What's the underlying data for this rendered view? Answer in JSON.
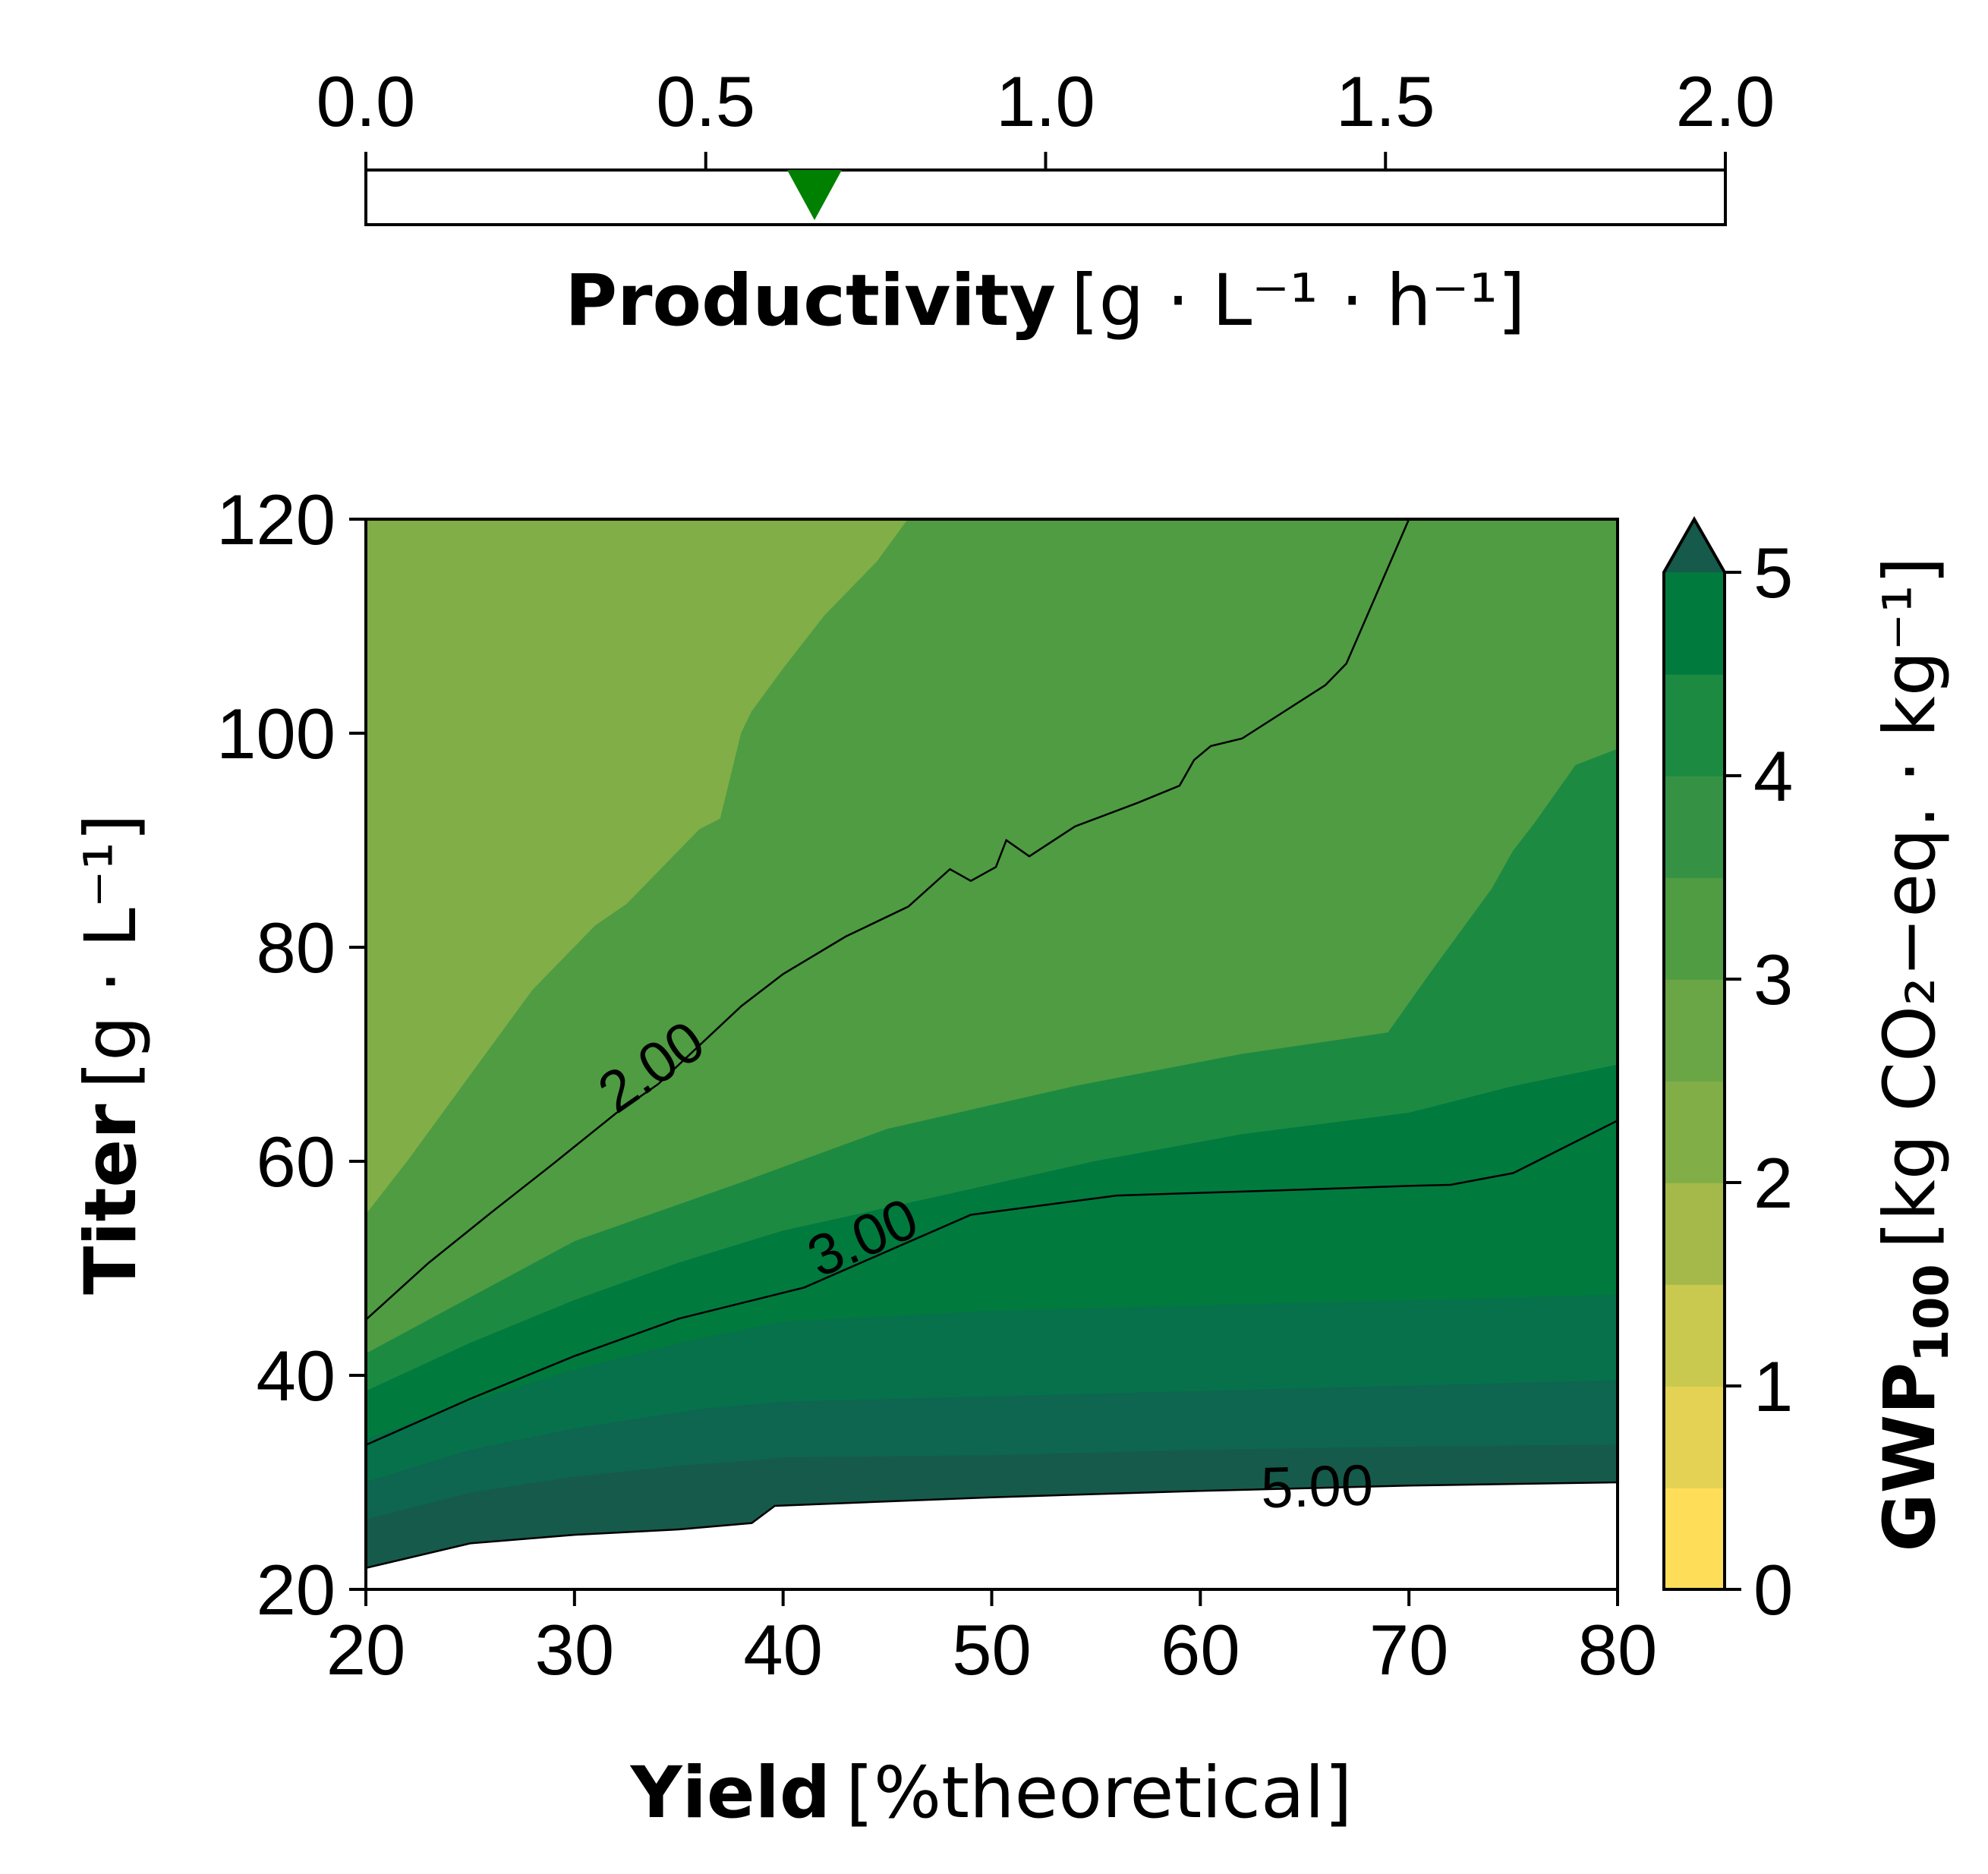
{
  "chart_data": [
    {
      "type": "slider",
      "name": "productivity-bar",
      "xlim": [
        0.0,
        2.0
      ],
      "ticks": [
        0.0,
        0.5,
        1.0,
        1.5,
        2.0
      ],
      "tick_labels": [
        "0.0",
        "0.5",
        "1.0",
        "1.5",
        "2.0"
      ],
      "marker_value": 0.66,
      "marker_color": "#008000",
      "xlabel_bold": "Productivity",
      "xlabel_unit": "[g · L⁻¹ · h⁻¹]"
    },
    {
      "type": "contour",
      "xlim": [
        20,
        80
      ],
      "ylim": [
        20,
        120
      ],
      "xticks": [
        20,
        30,
        40,
        50,
        60,
        70,
        80
      ],
      "yticks": [
        20,
        40,
        60,
        80,
        100,
        120
      ],
      "xlabel_bold": "Yield",
      "xlabel_unit": "[%theoretical]",
      "ylabel_bold": "Titer",
      "ylabel_unit": "[g · L⁻¹]",
      "contour_lines": [
        {
          "level": 2.0,
          "label": "2.00",
          "label_pos": [
            33.8,
            68.5
          ],
          "points": [
            [
              20,
              45.2
            ],
            [
              23,
              50.5
            ],
            [
              26,
              55.2
            ],
            [
              29,
              59.8
            ],
            [
              32,
              64.5
            ],
            [
              34,
              67.2
            ],
            [
              38,
              74.5
            ],
            [
              40,
              77.5
            ],
            [
              43,
              81
            ],
            [
              46,
              83.8
            ],
            [
              48,
              87.3
            ],
            [
              49,
              86.2
            ],
            [
              50.2,
              87.5
            ],
            [
              50.7,
              90
            ],
            [
              51.8,
              88.5
            ],
            [
              54,
              91.3
            ],
            [
              57,
              93.5
            ],
            [
              59,
              95.1
            ],
            [
              59.7,
              97.5
            ],
            [
              60.5,
              98.8
            ],
            [
              62,
              99.5
            ],
            [
              66,
              104.5
            ],
            [
              67,
              106.5
            ],
            [
              70,
              120
            ]
          ]
        },
        {
          "level": 3.0,
          "label": "3.00",
          "label_pos": [
            43.9,
            52.5
          ],
          "points": [
            [
              20,
              33.5
            ],
            [
              25,
              37.8
            ],
            [
              30,
              41.8
            ],
            [
              35,
              45.3
            ],
            [
              41,
              48.2
            ],
            [
              49,
              55
            ],
            [
              56,
              56.8
            ],
            [
              64,
              57.3
            ],
            [
              70,
              57.7
            ],
            [
              72,
              57.8
            ],
            [
              75,
              58.9
            ],
            [
              80,
              63.8
            ]
          ]
        },
        {
          "level": 5.0,
          "label": "5.00",
          "label_pos": [
            65.6,
            29.2
          ],
          "points": [
            [
              20,
              22
            ],
            [
              25,
              24.3
            ],
            [
              30,
              25.1
            ],
            [
              35,
              25.6
            ],
            [
              38.5,
              26.2
            ],
            [
              39.6,
              27.8
            ],
            [
              50,
              28.6
            ],
            [
              60,
              29.2
            ],
            [
              70,
              29.7
            ],
            [
              80,
              30
            ]
          ]
        }
      ],
      "filled_regions": [
        {
          "level_range": "1.5-2.0",
          "color": "#81ae47",
          "points": [
            [
              20,
              120
            ],
            [
              20,
              55
            ],
            [
              22,
              60
            ],
            [
              25,
              68
            ],
            [
              28,
              76
            ],
            [
              31,
              82
            ],
            [
              32.5,
              84
            ],
            [
              36,
              91
            ],
            [
              37,
              92
            ],
            [
              38,
              100
            ],
            [
              38.5,
              102
            ],
            [
              40,
              106
            ],
            [
              42,
              111
            ],
            [
              44.5,
              116
            ],
            [
              46,
              120
            ]
          ]
        },
        {
          "level_range": "2.0-2.5",
          "color": "#4f9c43",
          "points": [
            [
              20,
              55
            ],
            [
              22,
              60
            ],
            [
              25,
              68
            ],
            [
              28,
              76
            ],
            [
              31,
              82
            ],
            [
              32.5,
              84
            ],
            [
              36,
              91
            ],
            [
              37,
              92
            ],
            [
              38,
              100
            ],
            [
              38.5,
              102
            ],
            [
              40,
              106
            ],
            [
              42,
              111
            ],
            [
              44.5,
              116
            ],
            [
              46,
              120
            ],
            [
              80,
              120
            ],
            [
              80,
              98.5
            ],
            [
              78,
              97
            ],
            [
              76,
              91.5
            ],
            [
              75,
              89
            ],
            [
              74,
              85.5
            ],
            [
              71,
              77.5
            ],
            [
              69,
              72
            ],
            [
              62,
              70
            ],
            [
              54,
              67
            ],
            [
              45,
              63
            ],
            [
              38,
              58
            ],
            [
              30,
              52.5
            ],
            [
              20,
              42
            ]
          ]
        },
        {
          "level_range": "2.5-3.0",
          "color": "#1d8a42",
          "points": [
            [
              20,
              42
            ],
            [
              30,
              52.5
            ],
            [
              38,
              58
            ],
            [
              45,
              63
            ],
            [
              54,
              67
            ],
            [
              62,
              70
            ],
            [
              69,
              72
            ],
            [
              71,
              77.5
            ],
            [
              74,
              85.5
            ],
            [
              75,
              89
            ],
            [
              76,
              91.5
            ],
            [
              78,
              97
            ],
            [
              80,
              98.5
            ],
            [
              80,
              20
            ],
            [
              20,
              20
            ]
          ]
        },
        {
          "level_range": "3.0-3.5",
          "color": "#017a3e",
          "points": [
            [
              20,
              38.5
            ],
            [
              25,
              43
            ],
            [
              30,
              47
            ],
            [
              35,
              50.5
            ],
            [
              40,
              53.5
            ],
            [
              47,
              56.5
            ],
            [
              55,
              60
            ],
            [
              62,
              62.5
            ],
            [
              70,
              64.5
            ],
            [
              75,
              67
            ],
            [
              80,
              69
            ],
            [
              80,
              20
            ],
            [
              20,
              20
            ]
          ]
        },
        {
          "level_range": "3.5-4.0",
          "color": "#06714a",
          "points": [
            [
              20,
              34
            ],
            [
              25,
              37.5
            ],
            [
              30,
              40.5
            ],
            [
              35,
              43
            ],
            [
              40,
              45
            ],
            [
              50,
              46
            ],
            [
              60,
              46.5
            ],
            [
              70,
              47
            ],
            [
              80,
              47.5
            ],
            [
              80,
              20
            ],
            [
              20,
              20
            ]
          ]
        },
        {
          "level_range": "4.0-4.5",
          "color": "#0e6550",
          "points": [
            [
              20,
              30
            ],
            [
              25,
              33
            ],
            [
              30,
              35
            ],
            [
              36,
              36.8
            ],
            [
              40,
              37.5
            ],
            [
              50,
              38
            ],
            [
              60,
              38.5
            ],
            [
              70,
              39
            ],
            [
              80,
              39.5
            ],
            [
              80,
              20
            ],
            [
              20,
              20
            ]
          ]
        },
        {
          "level_range": "4.5-5.0",
          "color": "#165a4c",
          "points": [
            [
              20,
              26.5
            ],
            [
              25,
              29
            ],
            [
              30,
              30.5
            ],
            [
              35,
              31.5
            ],
            [
              38.5,
              32
            ],
            [
              40,
              32.3
            ],
            [
              50,
              32.5
            ],
            [
              60,
              33
            ],
            [
              70,
              33.3
            ],
            [
              80,
              33.5
            ],
            [
              80,
              20
            ],
            [
              20,
              20
            ]
          ]
        },
        {
          "level_range": ">5.0",
          "color": "#ffffff",
          "points": [
            [
              20,
              22
            ],
            [
              25,
              24.3
            ],
            [
              30,
              25.1
            ],
            [
              35,
              25.6
            ],
            [
              38.5,
              26.2
            ],
            [
              39.6,
              27.8
            ],
            [
              50,
              28.6
            ],
            [
              60,
              29.2
            ],
            [
              70,
              29.7
            ],
            [
              80,
              30
            ],
            [
              80,
              20
            ],
            [
              20,
              20
            ]
          ]
        }
      ]
    },
    {
      "type": "colorbar",
      "vmin": 0,
      "vmax": 5,
      "ticks": [
        0,
        1,
        2,
        3,
        4,
        5
      ],
      "tick_labels": [
        "0",
        "1",
        "2",
        "3",
        "4",
        "5"
      ],
      "extend": "max",
      "colors": [
        "#fede58",
        "#e3d254",
        "#c9c84f",
        "#a5b94a",
        "#81ae47",
        "#6ba646",
        "#4f9c43",
        "#359245",
        "#1d8a42",
        "#017a3e",
        "#06714a",
        "#0e6550",
        "#165a4c"
      ],
      "label_bold": "GWP",
      "label_sub": "100",
      "label_unit": "[kg CO₂−eq. · kg⁻¹]"
    }
  ]
}
